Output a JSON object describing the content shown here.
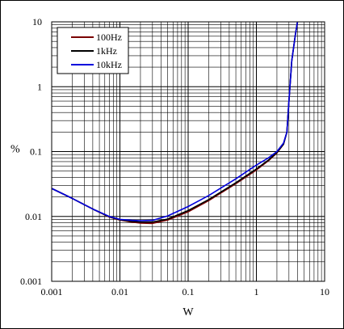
{
  "chart_data": {
    "type": "line",
    "xscale": "log",
    "yscale": "log",
    "xlim": [
      0.001,
      10
    ],
    "ylim": [
      0.001,
      10
    ],
    "xlabel": "W",
    "ylabel": "%",
    "xticks": [
      "0.001",
      "0.01",
      "0.1",
      "1",
      "10"
    ],
    "yticks": [
      "0.001",
      "0.01",
      "0.1",
      "1",
      "10"
    ],
    "grid": true,
    "legend_position": "top-left",
    "series": [
      {
        "name": "100Hz",
        "color": "#7a0000",
        "points": [
          [
            0.001,
            0.027
          ],
          [
            0.002,
            0.019
          ],
          [
            0.004,
            0.013
          ],
          [
            0.007,
            0.0098
          ],
          [
            0.01,
            0.0088
          ],
          [
            0.015,
            0.0082
          ],
          [
            0.02,
            0.0079
          ],
          [
            0.03,
            0.0078
          ],
          [
            0.05,
            0.0088
          ],
          [
            0.1,
            0.0118
          ],
          [
            0.2,
            0.0175
          ],
          [
            0.5,
            0.032
          ],
          [
            1,
            0.052
          ],
          [
            1.5,
            0.072
          ],
          [
            2,
            0.095
          ],
          [
            2.5,
            0.13
          ],
          [
            2.8,
            0.2
          ],
          [
            3,
            0.6
          ],
          [
            3.3,
            2.5
          ],
          [
            3.7,
            6
          ],
          [
            4,
            10
          ]
        ]
      },
      {
        "name": "1kHz",
        "color": "#000000",
        "points": [
          [
            0.001,
            0.027
          ],
          [
            0.002,
            0.019
          ],
          [
            0.004,
            0.013
          ],
          [
            0.007,
            0.0099
          ],
          [
            0.01,
            0.0089
          ],
          [
            0.015,
            0.0084
          ],
          [
            0.02,
            0.0082
          ],
          [
            0.03,
            0.0082
          ],
          [
            0.05,
            0.0091
          ],
          [
            0.1,
            0.0123
          ],
          [
            0.2,
            0.0182
          ],
          [
            0.5,
            0.033
          ],
          [
            1,
            0.054
          ],
          [
            1.5,
            0.074
          ],
          [
            2,
            0.097
          ],
          [
            2.5,
            0.13
          ],
          [
            2.8,
            0.2
          ],
          [
            3,
            0.6
          ],
          [
            3.3,
            2.5
          ],
          [
            3.7,
            6
          ],
          [
            4,
            10
          ]
        ]
      },
      {
        "name": "10kHz",
        "color": "#0000dd",
        "points": [
          [
            0.001,
            0.027
          ],
          [
            0.002,
            0.019
          ],
          [
            0.004,
            0.013
          ],
          [
            0.007,
            0.01
          ],
          [
            0.01,
            0.009
          ],
          [
            0.015,
            0.0087
          ],
          [
            0.02,
            0.0086
          ],
          [
            0.03,
            0.0087
          ],
          [
            0.05,
            0.0102
          ],
          [
            0.1,
            0.0142
          ],
          [
            0.2,
            0.021
          ],
          [
            0.5,
            0.038
          ],
          [
            1,
            0.062
          ],
          [
            1.5,
            0.08
          ],
          [
            2,
            0.1
          ],
          [
            2.5,
            0.135
          ],
          [
            2.8,
            0.2
          ],
          [
            3,
            0.6
          ],
          [
            3.3,
            2.5
          ],
          [
            3.7,
            6
          ],
          [
            4,
            10
          ]
        ]
      }
    ]
  }
}
